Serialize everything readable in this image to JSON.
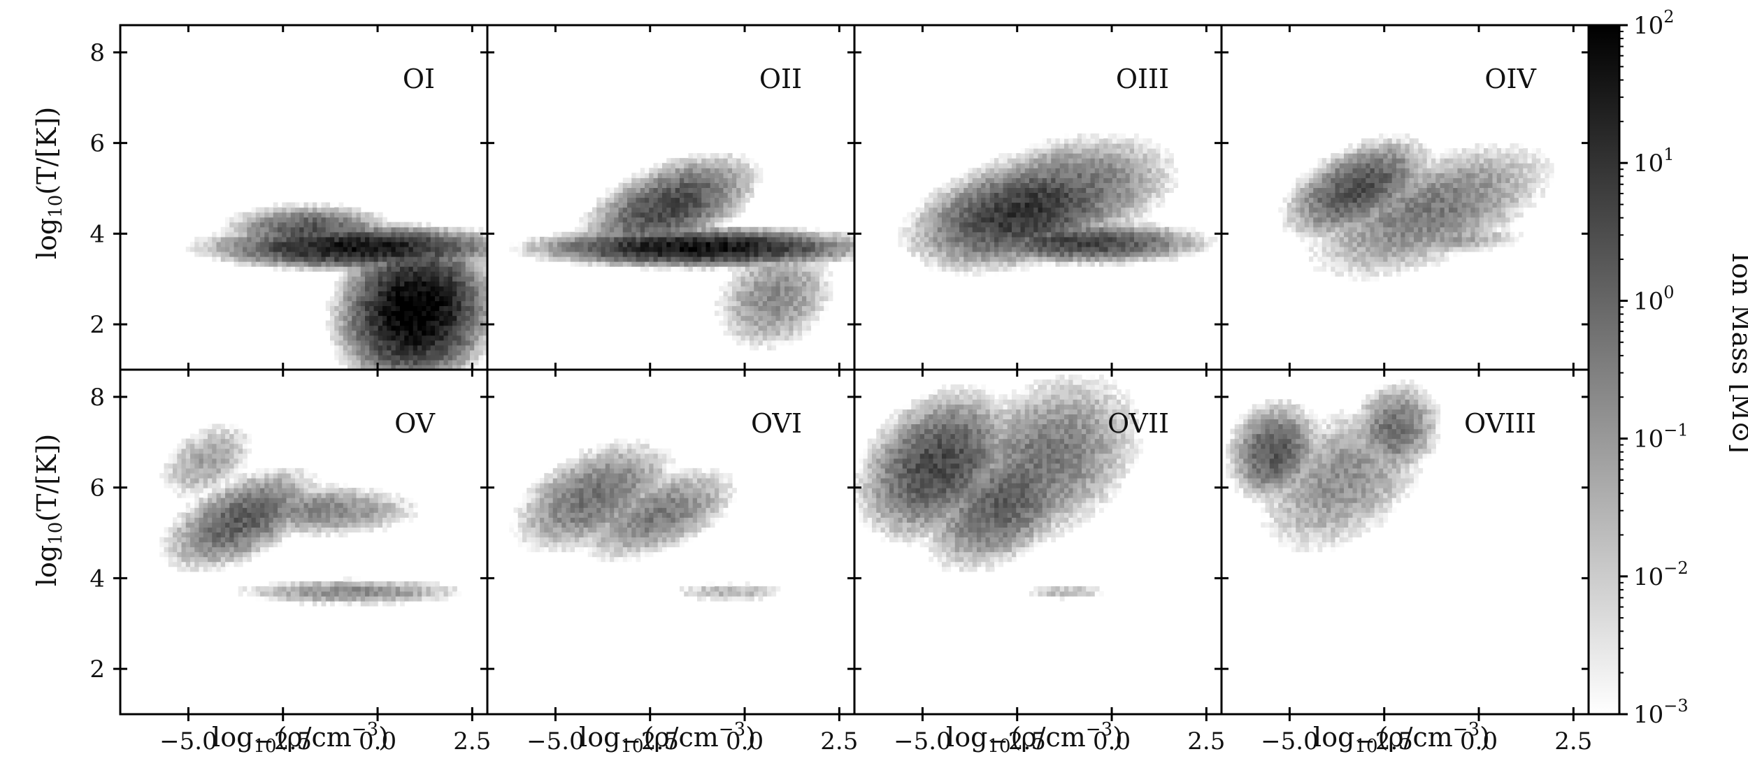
{
  "chart_data": {
    "type": "heatmap",
    "layout": {
      "rows": 2,
      "cols": 4,
      "shared_axes": true
    },
    "xlabel": "log10(ρ/cm−3)",
    "ylabel": "log10(T/[K])",
    "xlim": [
      -6.8,
      2.9
    ],
    "ylim": [
      1.0,
      8.6
    ],
    "xticks": [
      -5.0,
      -2.5,
      0.0,
      2.5
    ],
    "xtick_labels": [
      "−5.0",
      "−2.5",
      "0.0",
      "2.5"
    ],
    "yticks": [
      2,
      4,
      6,
      8
    ],
    "ytick_labels": [
      "2",
      "4",
      "6",
      "8"
    ],
    "colorbar": {
      "label": "Ion Mass [M⊙]",
      "scale": "log",
      "range": [
        0.001,
        100
      ],
      "ticks": [
        0.001,
        0.01,
        0.1,
        1,
        10,
        100
      ],
      "tick_labels": [
        {
          "base": "10",
          "exp": "−3"
        },
        {
          "base": "10",
          "exp": "−2"
        },
        {
          "base": "10",
          "exp": "−1"
        },
        {
          "base": "10",
          "exp": "0"
        },
        {
          "base": "10",
          "exp": "1"
        },
        {
          "base": "10",
          "exp": "2"
        }
      ],
      "colors": [
        "#ffffff",
        "#000000"
      ]
    },
    "panels": [
      {
        "name": "OI",
        "blobs": [
          {
            "x": 1.0,
            "y": 2.3,
            "sx": 1.0,
            "sy": 0.8,
            "amp": 2.1,
            "rot": 0.2
          },
          {
            "x": -0.5,
            "y": 3.7,
            "sx": 2.0,
            "sy": 0.25,
            "amp": 1.6,
            "rot": 0
          },
          {
            "x": -1.8,
            "y": 4.1,
            "sx": 1.2,
            "sy": 0.3,
            "amp": 0.4,
            "rot": 0
          }
        ]
      },
      {
        "name": "OII",
        "blobs": [
          {
            "x": -1.2,
            "y": 3.7,
            "sx": 2.2,
            "sy": 0.22,
            "amp": 1.7,
            "rot": 0
          },
          {
            "x": -2.0,
            "y": 4.6,
            "sx": 1.3,
            "sy": 0.5,
            "amp": 0.6,
            "rot": 0.3
          },
          {
            "x": 0.8,
            "y": 2.6,
            "sx": 1.0,
            "sy": 0.7,
            "amp": -0.7,
            "rot": 0.3
          }
        ]
      },
      {
        "name": "OIII",
        "blobs": [
          {
            "x": -2.3,
            "y": 4.5,
            "sx": 1.6,
            "sy": 0.6,
            "amp": 1.0,
            "rot": 0.2
          },
          {
            "x": -0.8,
            "y": 3.8,
            "sx": 1.8,
            "sy": 0.25,
            "amp": 0.7,
            "rot": 0
          },
          {
            "x": -1.5,
            "y": 4.8,
            "sx": 1.8,
            "sy": 0.7,
            "amp": 0.1,
            "rot": 0.2
          }
        ]
      },
      {
        "name": "OIV",
        "blobs": [
          {
            "x": -3.2,
            "y": 5.0,
            "sx": 1.1,
            "sy": 0.5,
            "amp": 0.5,
            "rot": 0.35
          },
          {
            "x": -1.3,
            "y": 4.5,
            "sx": 2.0,
            "sy": 0.7,
            "amp": -0.4,
            "rot": 0.3
          },
          {
            "x": -1.0,
            "y": 3.9,
            "sx": 1.5,
            "sy": 0.2,
            "amp": -1.0,
            "rot": 0
          }
        ]
      },
      {
        "name": "OV",
        "blobs": [
          {
            "x": -3.6,
            "y": 5.3,
            "sx": 1.2,
            "sy": 0.5,
            "amp": 0.2,
            "rot": 0.35
          },
          {
            "x": -1.5,
            "y": 5.5,
            "sx": 1.6,
            "sy": 0.35,
            "amp": -0.6,
            "rot": 0
          },
          {
            "x": -0.7,
            "y": 3.7,
            "sx": 1.9,
            "sy": 0.18,
            "amp": -0.7,
            "rot": 0
          },
          {
            "x": -4.5,
            "y": 6.6,
            "sx": 0.9,
            "sy": 0.5,
            "amp": -1.2,
            "rot": 0.4
          }
        ]
      },
      {
        "name": "OVI",
        "blobs": [
          {
            "x": -4.0,
            "y": 5.8,
            "sx": 1.3,
            "sy": 0.6,
            "amp": -0.2,
            "rot": 0.35
          },
          {
            "x": -2.3,
            "y": 5.4,
            "sx": 1.3,
            "sy": 0.5,
            "amp": -0.4,
            "rot": 0.3
          },
          {
            "x": -0.4,
            "y": 3.7,
            "sx": 1.1,
            "sy": 0.15,
            "amp": -1.5,
            "rot": 0
          }
        ]
      },
      {
        "name": "OVII",
        "blobs": [
          {
            "x": -4.6,
            "y": 6.5,
            "sx": 1.2,
            "sy": 0.8,
            "amp": 0.6,
            "rot": 0.45
          },
          {
            "x": -2.8,
            "y": 5.7,
            "sx": 1.3,
            "sy": 0.7,
            "amp": 0.2,
            "rot": 0.45
          },
          {
            "x": -1.8,
            "y": 6.6,
            "sx": 1.6,
            "sy": 1.0,
            "amp": -0.3,
            "rot": 0.4
          },
          {
            "x": -1.2,
            "y": 3.7,
            "sx": 0.8,
            "sy": 0.12,
            "amp": -1.6,
            "rot": 0
          }
        ]
      },
      {
        "name": "OVIII",
        "blobs": [
          {
            "x": -5.4,
            "y": 6.8,
            "sx": 0.7,
            "sy": 0.6,
            "amp": 0.3,
            "rot": 0.4
          },
          {
            "x": -2.2,
            "y": 7.3,
            "sx": 0.7,
            "sy": 0.6,
            "amp": -0.2,
            "rot": 0.3
          },
          {
            "x": -3.6,
            "y": 6.2,
            "sx": 1.5,
            "sy": 0.9,
            "amp": -0.8,
            "rot": 0.45
          }
        ]
      }
    ]
  }
}
